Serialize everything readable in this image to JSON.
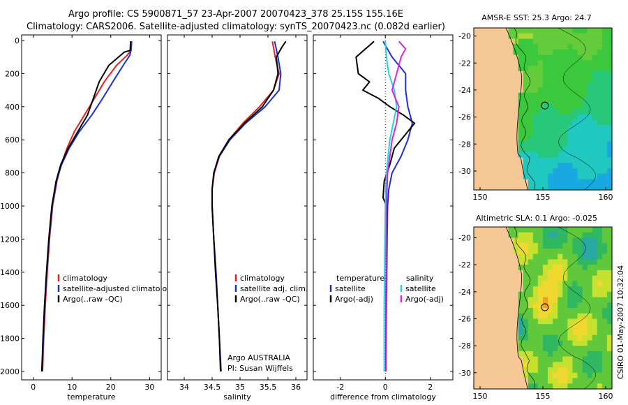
{
  "title": {
    "line1": "Argo profile: CS 5900871_57 23-Apr-2007 20070423_378 25.15S 155.16E",
    "line2": "Climatology: CARS2006. Satellite-adjusted climatology: synTS_20070423.nc (0.082d earlier)"
  },
  "footer": {
    "agency": "Argo AUSTRALIA",
    "pi": "PI: Susan Wijffels",
    "stamp": "CSIRO 01-May-2007 10:32:04"
  },
  "colors": {
    "climatology": "#e8201a",
    "satellite": "#1a2fd6",
    "argo": "#000000",
    "sat_salinity": "#22d6e0",
    "argo_salinity": "#e020e0",
    "land": "#f5c896",
    "frame": "#000000"
  },
  "chart_data": [
    {
      "id": "temperature",
      "type": "line",
      "xlabel": "temperature",
      "ylabel": "",
      "xlim": [
        -3,
        33
      ],
      "ylim": [
        2000,
        0
      ],
      "xticks": [
        0,
        10,
        20,
        30
      ],
      "yticks": [
        0,
        200,
        400,
        600,
        800,
        1000,
        1200,
        1400,
        1600,
        1800,
        2000
      ],
      "legend": [
        "climatology",
        "satellite-adjusted climatology",
        "Argo(..raw -QC)"
      ],
      "series": [
        {
          "name": "climatology",
          "color": "climatology",
          "y": [
            5,
            60,
            90,
            150,
            250,
            350,
            450,
            550,
            650,
            750,
            850,
            1000,
            1200,
            1400,
            1600,
            1800,
            2000
          ],
          "x": [
            25.4,
            25.2,
            24.2,
            21.5,
            18.3,
            15.8,
            13.2,
            10.6,
            8.7,
            7.2,
            6.1,
            5.0,
            4.2,
            3.6,
            3.1,
            2.7,
            2.4
          ]
        },
        {
          "name": "satellite",
          "color": "satellite",
          "y": [
            5,
            60,
            90,
            150,
            250,
            350,
            450,
            550,
            650,
            750,
            850,
            1000,
            1200,
            1400,
            1600,
            1800,
            2000
          ],
          "x": [
            25.3,
            25.2,
            24.9,
            23.2,
            20.5,
            17.9,
            15.1,
            11.9,
            9.3,
            7.3,
            6.0,
            4.9,
            4.1,
            3.5,
            3.0,
            2.6,
            2.3
          ]
        },
        {
          "name": "Argo",
          "color": "argo",
          "y": [
            5,
            60,
            70,
            150,
            250,
            350,
            450,
            550,
            650,
            750,
            850,
            1000,
            1200,
            1400,
            1600,
            1800,
            2000
          ],
          "x": [
            25.1,
            25.0,
            23.5,
            19.5,
            17.0,
            15.5,
            14.0,
            11.5,
            9.0,
            7.1,
            5.9,
            4.8,
            4.0,
            3.4,
            2.9,
            2.5,
            2.2
          ]
        }
      ]
    },
    {
      "id": "salinity",
      "type": "line",
      "xlabel": "salinity",
      "ylabel": "",
      "xlim": [
        33.7,
        36.2
      ],
      "ylim": [
        2000,
        0
      ],
      "xticks": [
        34,
        34.5,
        35,
        35.5,
        36
      ],
      "yticks": [
        0,
        200,
        400,
        600,
        800,
        1000,
        1200,
        1400,
        1600,
        1800,
        2000
      ],
      "legend": [
        "climatology",
        "satellite adj. clim.",
        "Argo(..raw -QC)"
      ],
      "series": [
        {
          "name": "climatology",
          "color": "climatology",
          "y": [
            5,
            100,
            200,
            300,
            400,
            500,
            600,
            700,
            800,
            900,
            1000,
            1200,
            1400,
            1600,
            1800,
            2000
          ],
          "x": [
            35.58,
            35.63,
            35.7,
            35.6,
            35.35,
            35.05,
            34.8,
            34.63,
            34.54,
            34.5,
            34.5,
            34.53,
            34.57,
            34.6,
            34.63,
            34.66
          ]
        },
        {
          "name": "satellite",
          "color": "satellite",
          "y": [
            5,
            100,
            200,
            300,
            400,
            500,
            600,
            700,
            800,
            900,
            1000,
            1200,
            1400,
            1600,
            1800,
            2000
          ],
          "x": [
            35.62,
            35.68,
            35.73,
            35.7,
            35.45,
            35.1,
            34.82,
            34.63,
            34.53,
            34.5,
            34.5,
            34.53,
            34.57,
            34.6,
            34.63,
            34.66
          ]
        },
        {
          "name": "Argo",
          "color": "argo",
          "y": [
            5,
            40,
            100,
            200,
            300,
            400,
            500,
            600,
            700,
            800,
            900,
            1000,
            1200,
            1400,
            1600,
            1800,
            2000
          ],
          "x": [
            35.82,
            35.75,
            35.65,
            35.68,
            35.6,
            35.4,
            35.08,
            34.8,
            34.62,
            34.53,
            34.5,
            34.5,
            34.53,
            34.56,
            34.6,
            34.63,
            34.65
          ]
        }
      ]
    },
    {
      "id": "difference",
      "type": "line",
      "xlabel": "difference from climatology",
      "ylabel": "",
      "xlim": [
        -3.2,
        3.0
      ],
      "ylim": [
        2000,
        0
      ],
      "xticks": [
        -2,
        0,
        2
      ],
      "yticks": [
        0,
        200,
        400,
        600,
        800,
        1000,
        1200,
        1400,
        1600,
        1800,
        2000
      ],
      "legend_groups": [
        {
          "heading": "temperature",
          "items": [
            "satellite",
            "Argo(-adj)"
          ]
        },
        {
          "heading": "salinity",
          "items": [
            "satellite",
            "Argo(-adj)"
          ]
        }
      ],
      "series": [
        {
          "name": "temperature satellite",
          "color": "satellite",
          "y": [
            5,
            100,
            200,
            300,
            400,
            500,
            600,
            700,
            800,
            900,
            1000,
            1200,
            1600,
            2000
          ],
          "x": [
            -0.1,
            0.3,
            0.9,
            0.9,
            1.0,
            1.2,
            1.0,
            0.7,
            0.3,
            0.15,
            0.1,
            0.08,
            0.05,
            0.03
          ]
        },
        {
          "name": "temperature Argo(-adj)",
          "color": "argo",
          "y": [
            5,
            100,
            200,
            250,
            300,
            350,
            400,
            450,
            500,
            550,
            650,
            750,
            850,
            950,
            1000,
            1200,
            1600,
            2000
          ],
          "x": [
            -0.5,
            -1.3,
            -1.2,
            -0.7,
            -1.0,
            -0.3,
            0.2,
            0.8,
            1.3,
            1.0,
            0.4,
            0.2,
            -0.05,
            -0.1,
            0.05,
            0.05,
            0.03,
            0.02
          ]
        },
        {
          "name": "salinity satellite",
          "color": "sat_salinity",
          "y": [
            5,
            100,
            200,
            300,
            400,
            500,
            600,
            800,
            1000,
            1200,
            1600,
            2000
          ],
          "x": [
            0.0,
            0.05,
            0.15,
            0.4,
            0.5,
            0.35,
            0.2,
            0.05,
            0.0,
            -0.02,
            -0.05,
            -0.05
          ]
        },
        {
          "name": "salinity Argo(-adj)",
          "color": "argo_salinity",
          "y": [
            5,
            50,
            100,
            150,
            200,
            300,
            400,
            500,
            600,
            700,
            800,
            1000,
            1200,
            1600,
            2000
          ],
          "x": [
            0.6,
            0.9,
            0.7,
            0.6,
            0.5,
            0.3,
            0.6,
            0.5,
            0.3,
            0.2,
            0.1,
            0.05,
            0.05,
            0.03,
            0.03
          ]
        }
      ]
    },
    {
      "id": "sst-map",
      "type": "heatmap",
      "title": "AMSR-E SST: 25.3 Argo: 24.7",
      "xlim": [
        149.5,
        160.5
      ],
      "ylim": [
        -31.4,
        -19.4
      ],
      "xticks": [
        150,
        155,
        160
      ],
      "yticks": [
        -20,
        -22,
        -24,
        -26,
        -28,
        -30
      ],
      "profile_location": {
        "lon": 155.16,
        "lat": -25.15
      }
    },
    {
      "id": "sla-map",
      "type": "heatmap",
      "title": "Altimetric SLA: 0.1 Argo: -0.025",
      "xlim": [
        149.5,
        160.5
      ],
      "ylim": [
        -31.2,
        -19.2
      ],
      "xticks": [
        150,
        155,
        160
      ],
      "yticks": [
        -20,
        -22,
        -24,
        -26,
        -28,
        -30
      ],
      "profile_location": {
        "lon": 155.16,
        "lat": -25.15
      }
    }
  ]
}
